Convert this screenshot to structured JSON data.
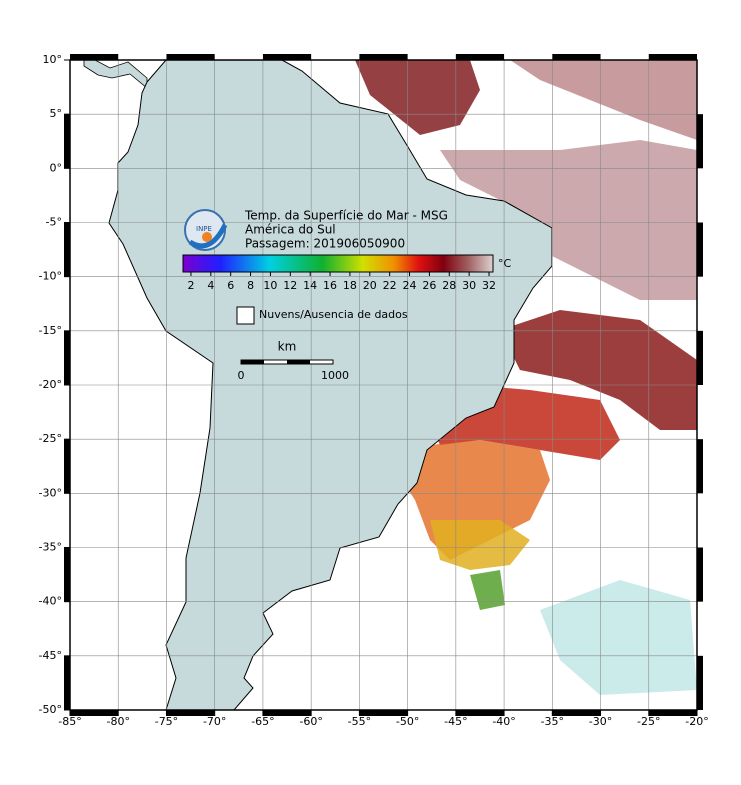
{
  "map": {
    "title_lines": [
      "Temp. da Superfície do Mar - MSG",
      "América do Sul",
      "Passagem: 201906050900"
    ],
    "colorbar": {
      "range": [
        1.2,
        32.4
      ],
      "ticks": [
        2,
        4,
        6,
        8,
        10,
        12,
        14,
        16,
        18,
        20,
        22,
        24,
        26,
        28,
        30,
        32
      ],
      "unit": "°C"
    },
    "legend": "Nuvens/Ausencia de dados",
    "scale_bar": {
      "unit": "km",
      "labels": [
        "0",
        "1000"
      ]
    },
    "xlim": [
      -85,
      -20
    ],
    "ylim": [
      -50,
      10
    ],
    "xticks": [
      {
        "value": -85,
        "label": "-85°"
      },
      {
        "value": -80,
        "label": "-80°"
      },
      {
        "value": -75,
        "label": "-75°"
      },
      {
        "value": -70,
        "label": "-70°"
      },
      {
        "value": -65,
        "label": "-65°"
      },
      {
        "value": -60,
        "label": "-60°"
      },
      {
        "value": -55,
        "label": "-55°"
      },
      {
        "value": -50,
        "label": "-50°"
      },
      {
        "value": -45,
        "label": "-45°"
      },
      {
        "value": -40,
        "label": "-40°"
      },
      {
        "value": -35,
        "label": "-35°"
      },
      {
        "value": -30,
        "label": "-30°"
      },
      {
        "value": -25,
        "label": "-25°"
      },
      {
        "value": -20,
        "label": "-20°"
      }
    ],
    "yticks": [
      {
        "value": 10,
        "label": "10°"
      },
      {
        "value": 5,
        "label": "5°"
      },
      {
        "value": 0,
        "label": "0°"
      },
      {
        "value": -5,
        "label": "-5°"
      },
      {
        "value": -10,
        "label": "-10°"
      },
      {
        "value": -15,
        "label": "-15°"
      },
      {
        "value": -20,
        "label": "-20°"
      },
      {
        "value": -25,
        "label": "-25°"
      },
      {
        "value": -30,
        "label": "-30°"
      },
      {
        "value": -35,
        "label": "-35°"
      },
      {
        "value": -40,
        "label": "-40°"
      },
      {
        "value": -45,
        "label": "-45°"
      },
      {
        "value": -50,
        "label": "-50°"
      }
    ]
  }
}
